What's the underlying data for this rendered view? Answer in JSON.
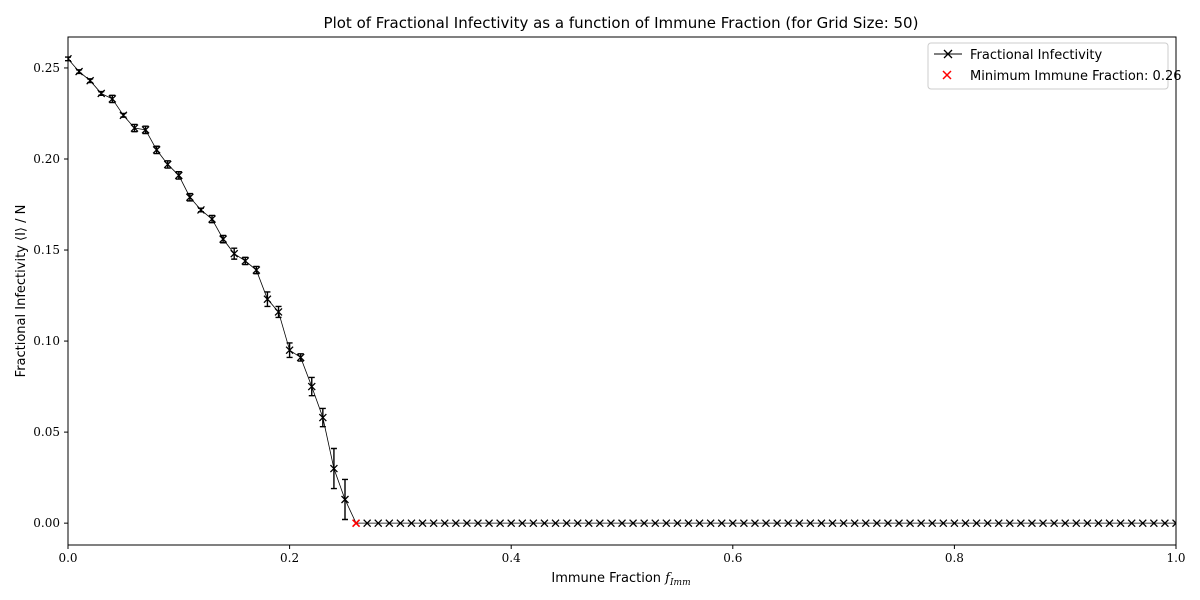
{
  "chart_data": {
    "type": "line",
    "title": "Plot of Fractional Infectivity as a function of Immune Fraction (for Grid Size: 50)",
    "xlabel": "Immune Fraction f_Imm",
    "xlabel_main": "Immune Fraction ",
    "xlabel_sym": "f",
    "xlabel_sub": "Imm",
    "ylabel": "Fractional Infectivity ⟨I⟩ / N",
    "xlim": [
      0.0,
      1.0
    ],
    "ylim": [
      -0.012,
      0.267
    ],
    "xticks": [
      0.0,
      0.2,
      0.4,
      0.6,
      0.8,
      1.0
    ],
    "xtick_labels": [
      "0.0",
      "0.2",
      "0.4",
      "0.6",
      "0.8",
      "1.0"
    ],
    "yticks": [
      0.0,
      0.05,
      0.1,
      0.15,
      0.2,
      0.25
    ],
    "ytick_labels": [
      "0.00",
      "0.05",
      "0.10",
      "0.15",
      "0.20",
      "0.25"
    ],
    "grid": false,
    "legend_position": "top-right",
    "legend": {
      "series_label": "Fractional Infectivity",
      "minimum_label": "Minimum Immune Fraction: 0.26"
    },
    "series": [
      {
        "name": "Fractional Infectivity",
        "color": "#000000",
        "marker": "x",
        "x": [
          0.0,
          0.01,
          0.02,
          0.03,
          0.04,
          0.05,
          0.06,
          0.07,
          0.08,
          0.09,
          0.1,
          0.11,
          0.12,
          0.13,
          0.14,
          0.15,
          0.16,
          0.17,
          0.18,
          0.19,
          0.2,
          0.21,
          0.22,
          0.23,
          0.24,
          0.25,
          0.26
        ],
        "y": [
          0.255,
          0.248,
          0.243,
          0.236,
          0.233,
          0.224,
          0.217,
          0.216,
          0.205,
          0.197,
          0.191,
          0.179,
          0.172,
          0.167,
          0.156,
          0.148,
          0.144,
          0.139,
          0.123,
          0.116,
          0.095,
          0.091,
          0.075,
          0.058,
          0.03,
          0.013,
          0.0
        ],
        "err": [
          0.001,
          0.001,
          0.001,
          0.001,
          0.002,
          0.001,
          0.002,
          0.002,
          0.002,
          0.002,
          0.002,
          0.002,
          0.001,
          0.002,
          0.002,
          0.003,
          0.002,
          0.002,
          0.004,
          0.003,
          0.004,
          0.002,
          0.005,
          0.005,
          0.011,
          0.011,
          0.0
        ],
        "tail": {
          "x_start": 0.26,
          "x_end": 1.0,
          "step": 0.01,
          "y": 0.0
        }
      }
    ],
    "minimum_point": {
      "label": "Minimum Immune Fraction: 0.26",
      "x": 0.26,
      "y": 0.0,
      "color": "#ff0000",
      "marker": "x"
    }
  }
}
